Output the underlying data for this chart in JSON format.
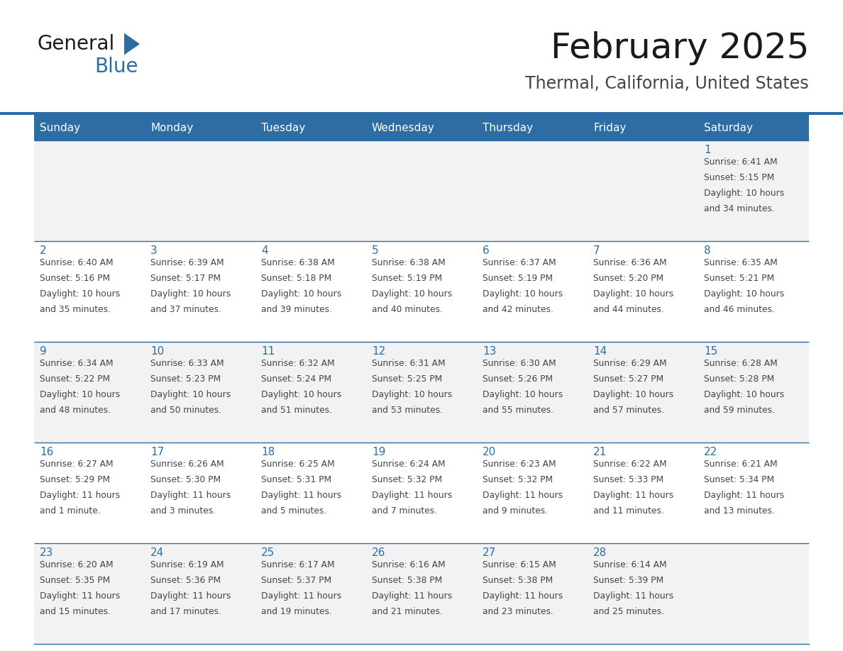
{
  "title": "February 2025",
  "subtitle": "Thermal, California, United States",
  "header_bg": "#2E6DA4",
  "header_text_color": "#FFFFFF",
  "cell_bg_odd": "#F2F2F2",
  "cell_bg_even": "#FFFFFF",
  "border_color": "#2E6DA4",
  "day_number_color": "#2E6DA4",
  "info_text_color": "#444444",
  "days_of_week": [
    "Sunday",
    "Monday",
    "Tuesday",
    "Wednesday",
    "Thursday",
    "Friday",
    "Saturday"
  ],
  "calendar_data": [
    [
      null,
      null,
      null,
      null,
      null,
      null,
      {
        "day": 1,
        "sunrise": "6:41 AM",
        "sunset": "5:15 PM",
        "daylight": "10 hours",
        "daylight2": "and 34 minutes."
      }
    ],
    [
      {
        "day": 2,
        "sunrise": "6:40 AM",
        "sunset": "5:16 PM",
        "daylight": "10 hours",
        "daylight2": "and 35 minutes."
      },
      {
        "day": 3,
        "sunrise": "6:39 AM",
        "sunset": "5:17 PM",
        "daylight": "10 hours",
        "daylight2": "and 37 minutes."
      },
      {
        "day": 4,
        "sunrise": "6:38 AM",
        "sunset": "5:18 PM",
        "daylight": "10 hours",
        "daylight2": "and 39 minutes."
      },
      {
        "day": 5,
        "sunrise": "6:38 AM",
        "sunset": "5:19 PM",
        "daylight": "10 hours",
        "daylight2": "and 40 minutes."
      },
      {
        "day": 6,
        "sunrise": "6:37 AM",
        "sunset": "5:19 PM",
        "daylight": "10 hours",
        "daylight2": "and 42 minutes."
      },
      {
        "day": 7,
        "sunrise": "6:36 AM",
        "sunset": "5:20 PM",
        "daylight": "10 hours",
        "daylight2": "and 44 minutes."
      },
      {
        "day": 8,
        "sunrise": "6:35 AM",
        "sunset": "5:21 PM",
        "daylight": "10 hours",
        "daylight2": "and 46 minutes."
      }
    ],
    [
      {
        "day": 9,
        "sunrise": "6:34 AM",
        "sunset": "5:22 PM",
        "daylight": "10 hours",
        "daylight2": "and 48 minutes."
      },
      {
        "day": 10,
        "sunrise": "6:33 AM",
        "sunset": "5:23 PM",
        "daylight": "10 hours",
        "daylight2": "and 50 minutes."
      },
      {
        "day": 11,
        "sunrise": "6:32 AM",
        "sunset": "5:24 PM",
        "daylight": "10 hours",
        "daylight2": "and 51 minutes."
      },
      {
        "day": 12,
        "sunrise": "6:31 AM",
        "sunset": "5:25 PM",
        "daylight": "10 hours",
        "daylight2": "and 53 minutes."
      },
      {
        "day": 13,
        "sunrise": "6:30 AM",
        "sunset": "5:26 PM",
        "daylight": "10 hours",
        "daylight2": "and 55 minutes."
      },
      {
        "day": 14,
        "sunrise": "6:29 AM",
        "sunset": "5:27 PM",
        "daylight": "10 hours",
        "daylight2": "and 57 minutes."
      },
      {
        "day": 15,
        "sunrise": "6:28 AM",
        "sunset": "5:28 PM",
        "daylight": "10 hours",
        "daylight2": "and 59 minutes."
      }
    ],
    [
      {
        "day": 16,
        "sunrise": "6:27 AM",
        "sunset": "5:29 PM",
        "daylight": "11 hours",
        "daylight2": "and 1 minute."
      },
      {
        "day": 17,
        "sunrise": "6:26 AM",
        "sunset": "5:30 PM",
        "daylight": "11 hours",
        "daylight2": "and 3 minutes."
      },
      {
        "day": 18,
        "sunrise": "6:25 AM",
        "sunset": "5:31 PM",
        "daylight": "11 hours",
        "daylight2": "and 5 minutes."
      },
      {
        "day": 19,
        "sunrise": "6:24 AM",
        "sunset": "5:32 PM",
        "daylight": "11 hours",
        "daylight2": "and 7 minutes."
      },
      {
        "day": 20,
        "sunrise": "6:23 AM",
        "sunset": "5:32 PM",
        "daylight": "11 hours",
        "daylight2": "and 9 minutes."
      },
      {
        "day": 21,
        "sunrise": "6:22 AM",
        "sunset": "5:33 PM",
        "daylight": "11 hours",
        "daylight2": "and 11 minutes."
      },
      {
        "day": 22,
        "sunrise": "6:21 AM",
        "sunset": "5:34 PM",
        "daylight": "11 hours",
        "daylight2": "and 13 minutes."
      }
    ],
    [
      {
        "day": 23,
        "sunrise": "6:20 AM",
        "sunset": "5:35 PM",
        "daylight": "11 hours",
        "daylight2": "and 15 minutes."
      },
      {
        "day": 24,
        "sunrise": "6:19 AM",
        "sunset": "5:36 PM",
        "daylight": "11 hours",
        "daylight2": "and 17 minutes."
      },
      {
        "day": 25,
        "sunrise": "6:17 AM",
        "sunset": "5:37 PM",
        "daylight": "11 hours",
        "daylight2": "and 19 minutes."
      },
      {
        "day": 26,
        "sunrise": "6:16 AM",
        "sunset": "5:38 PM",
        "daylight": "11 hours",
        "daylight2": "and 21 minutes."
      },
      {
        "day": 27,
        "sunrise": "6:15 AM",
        "sunset": "5:38 PM",
        "daylight": "11 hours",
        "daylight2": "and 23 minutes."
      },
      {
        "day": 28,
        "sunrise": "6:14 AM",
        "sunset": "5:39 PM",
        "daylight": "11 hours",
        "daylight2": "and 25 minutes."
      },
      null
    ]
  ],
  "title_fontsize": 36,
  "subtitle_fontsize": 17,
  "dow_fontsize": 11,
  "day_num_fontsize": 11,
  "info_fontsize": 8.8
}
